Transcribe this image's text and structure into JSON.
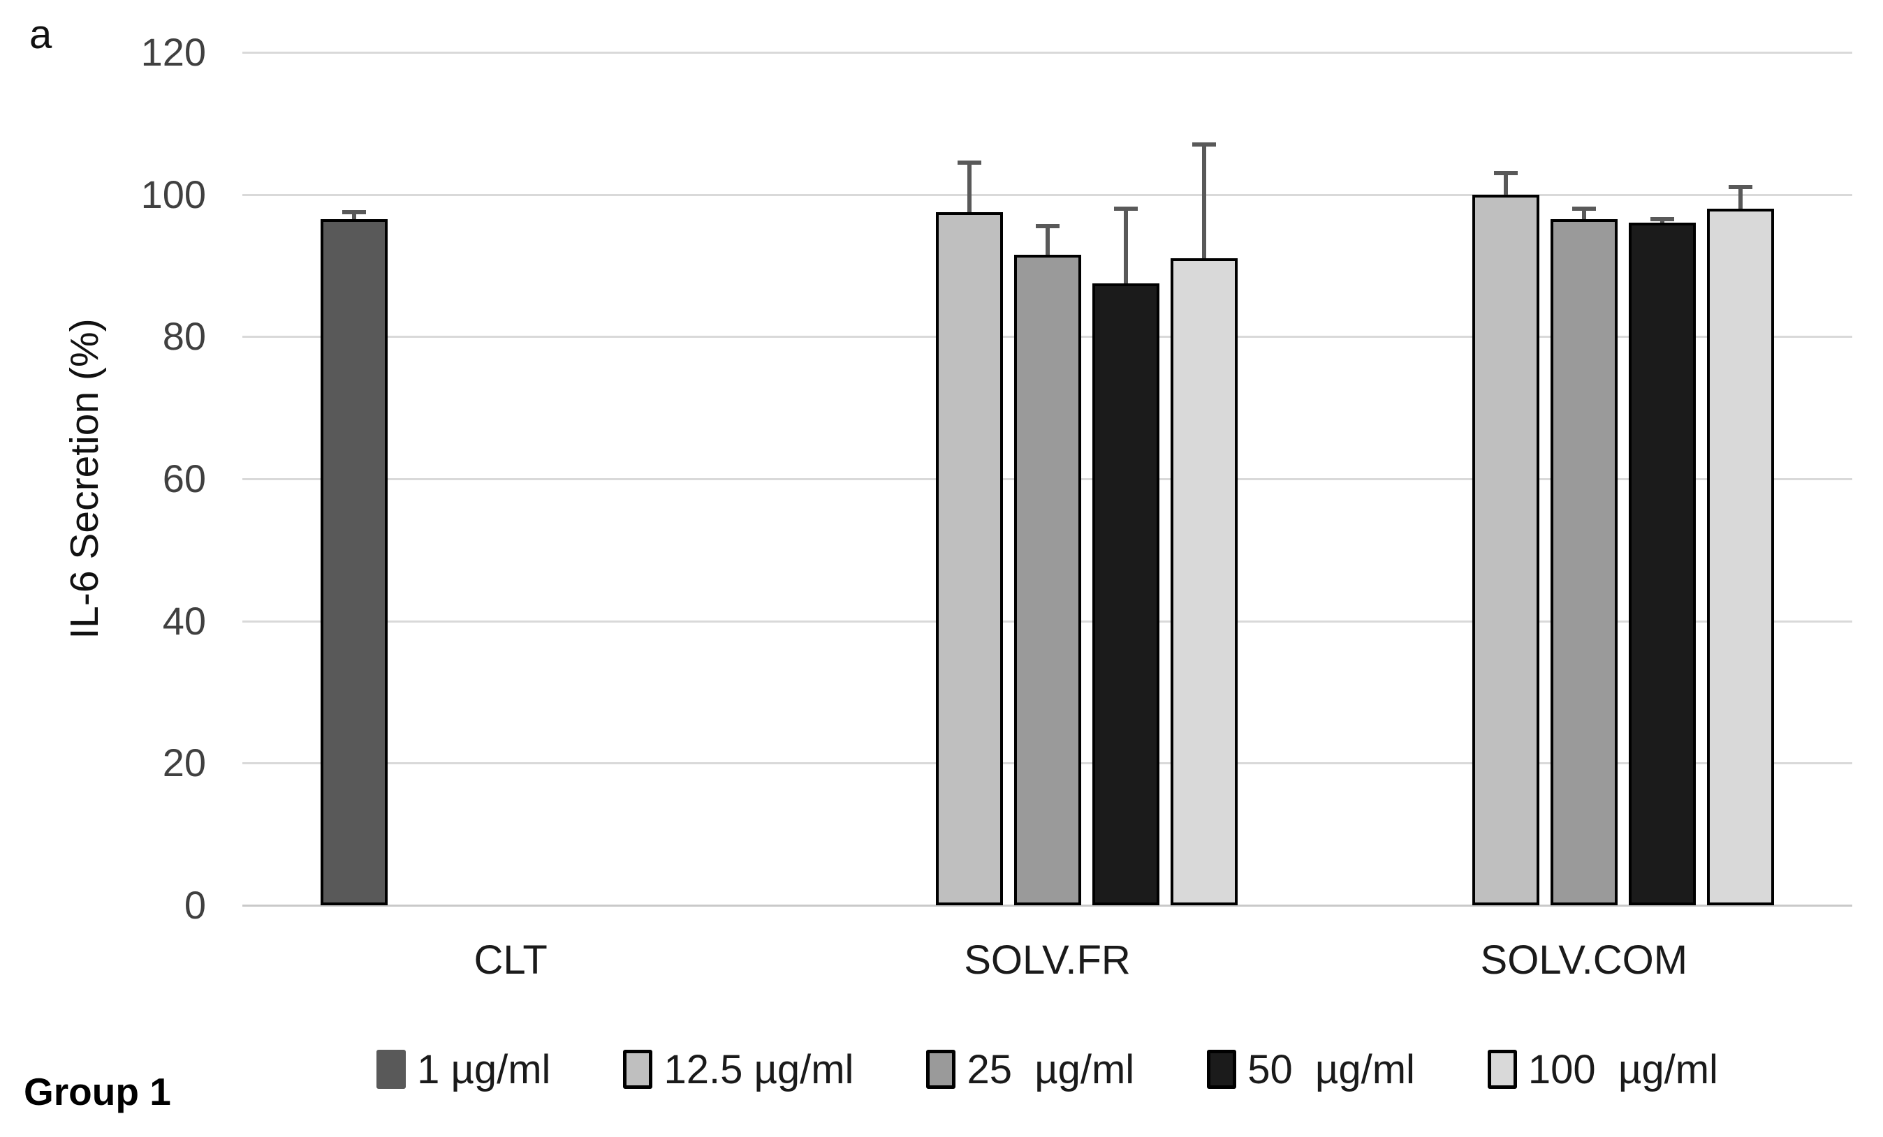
{
  "figure": {
    "panel_label": "a",
    "group_label": "Group 1"
  },
  "chart_data": {
    "type": "bar",
    "title": "",
    "xlabel": "",
    "ylabel": "IL-6 Secretion (%)",
    "ylim": [
      0,
      120
    ],
    "yticks": [
      0,
      20,
      40,
      60,
      80,
      100,
      120
    ],
    "grid": "horizontal",
    "legend_position": "bottom",
    "categories": [
      "CLT",
      "SOLV.FR",
      "SOLV.COM"
    ],
    "series": [
      {
        "name": "1 µg/ml",
        "color": "#595959",
        "swatch_border": "#595959",
        "values": [
          96.5,
          null,
          null
        ],
        "errors": [
          1,
          null,
          null
        ]
      },
      {
        "name": "12.5 µg/ml",
        "color": "#bfbfbf",
        "swatch_border": "#000000",
        "values": [
          null,
          97.5,
          100
        ],
        "errors": [
          null,
          7,
          3
        ]
      },
      {
        "name": "25  µg/ml",
        "color": "#9a9a9a",
        "swatch_border": "#000000",
        "values": [
          null,
          91.5,
          96.5
        ],
        "errors": [
          null,
          4,
          1.5
        ]
      },
      {
        "name": "50  µg/ml",
        "color": "#1b1b1b",
        "swatch_border": "#000000",
        "values": [
          null,
          87.5,
          96
        ],
        "errors": [
          null,
          10.5,
          0.5
        ]
      },
      {
        "name": "100  µg/ml",
        "color": "#d9d9d9",
        "swatch_border": "#000000",
        "values": [
          null,
          91,
          98
        ],
        "errors": [
          null,
          16,
          3
        ]
      }
    ],
    "colors": {
      "gridline": "#d9d9d9",
      "axis_line": "#c9c9c9",
      "bar_border": "#000000",
      "error_bar": "#595959",
      "tick_label": "#404040",
      "category_label": "#1a1a1a",
      "legend_text": "#1a1a1a"
    }
  }
}
